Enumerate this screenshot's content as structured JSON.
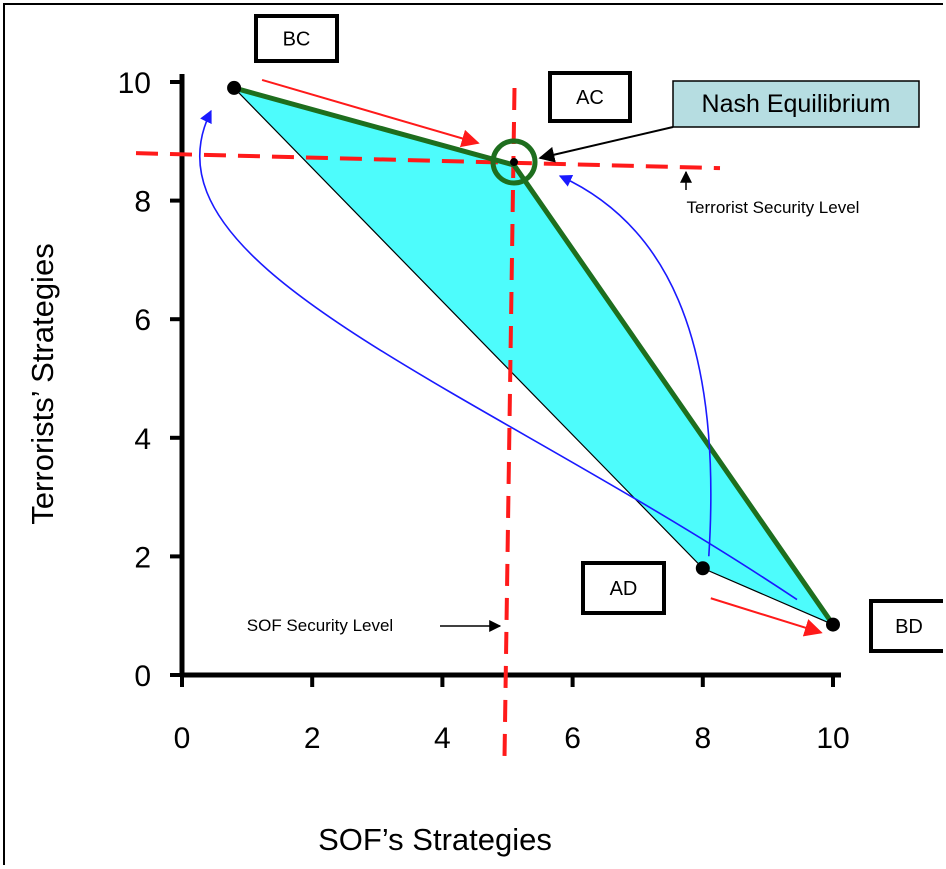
{
  "chart_data": {
    "type": "scatter",
    "title": "",
    "xlabel": "SOF’s Strategies",
    "ylabel": "Terrorists’ Strategies",
    "xlim": [
      0,
      10
    ],
    "ylim": [
      0,
      10
    ],
    "x_ticks": [
      0,
      2,
      4,
      6,
      8,
      10
    ],
    "y_ticks": [
      0,
      2,
      4,
      6,
      8,
      10
    ],
    "grid": false,
    "points": [
      {
        "label": "BC",
        "x": 0.8,
        "y": 9.9
      },
      {
        "label": "AC",
        "x": 5.1,
        "y": 8.6
      },
      {
        "label": "AD",
        "x": 8.0,
        "y": 1.8
      },
      {
        "label": "BD",
        "x": 10.0,
        "y": 0.85
      }
    ],
    "feasible_region": [
      {
        "x": 0.8,
        "y": 9.9
      },
      {
        "x": 5.1,
        "y": 8.6
      },
      {
        "x": 10.0,
        "y": 0.85
      },
      {
        "x": 8.0,
        "y": 1.8
      }
    ],
    "pareto_frontier": [
      {
        "x": 0.8,
        "y": 9.9
      },
      {
        "x": 5.1,
        "y": 8.6
      },
      {
        "x": 10.0,
        "y": 0.85
      }
    ],
    "security_levels": {
      "terrorist": {
        "y": 8.75,
        "label": "Terrorist Security Level"
      },
      "sof": {
        "x": 5.0,
        "label": "SOF Security Level"
      }
    },
    "nash_equilibrium": {
      "x": 5.1,
      "y": 8.6,
      "label": "Nash Equilibrium"
    },
    "colors": {
      "region_fill": "#4dfcfc",
      "frontier": "#1e6e1e",
      "security_line": "#ff1a1a",
      "arrow_red": "#ff1a1a",
      "arrow_blue": "#1a1aff",
      "nash_box": "#b6dde1"
    }
  }
}
